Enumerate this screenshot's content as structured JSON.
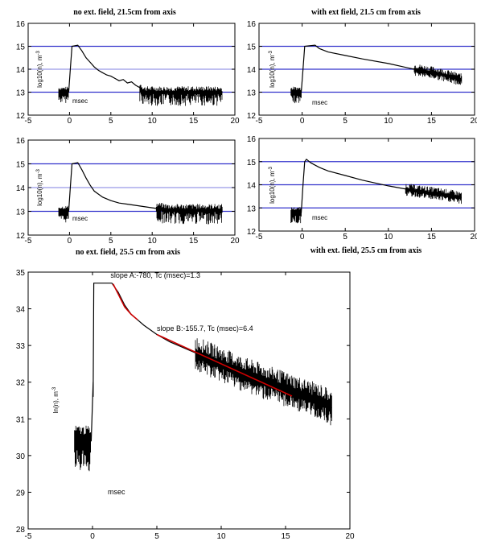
{
  "colors": {
    "data": "#000000",
    "fit": "#cc0000",
    "ref_dark": "#3333cc",
    "ref_light": "#9999e6"
  },
  "chart_data": [
    {
      "type": "line",
      "title": "no ext. field, 21.5cm from axis",
      "ylabel": "log10(n), m",
      "ylabel_sup": "-3",
      "xlabel": "msec",
      "xlim": [
        -5,
        20
      ],
      "ylim": [
        12,
        16
      ],
      "xticks": [
        "-5",
        "0",
        "5",
        "10",
        "15",
        "20"
      ],
      "yticks": [
        "12",
        "13",
        "14",
        "15",
        "16"
      ],
      "hlines": [
        13,
        14,
        15
      ],
      "series": [
        {
          "x": [
            -1.3,
            -0.1,
            0.1,
            0.3,
            1,
            1.5,
            2,
            2.5,
            3,
            3.5,
            4,
            4.5,
            5,
            5.5,
            6,
            6.5,
            7,
            7.5,
            8,
            8.5,
            9,
            10,
            12,
            14,
            16,
            18.5
          ],
          "y": [
            13.0,
            13.0,
            14.0,
            15.0,
            15.05,
            14.8,
            14.5,
            14.3,
            14.1,
            13.95,
            13.85,
            13.75,
            13.7,
            13.6,
            13.5,
            13.55,
            13.4,
            13.45,
            13.3,
            13.2,
            13.0,
            13.0,
            13.0,
            13.0,
            13.0,
            13.0
          ],
          "noise": [
            -1.3,
            -0.1,
            8.5,
            18.5
          ]
        }
      ]
    },
    {
      "type": "line",
      "title": "with ext field, 21.5 cm from axis",
      "ylabel": "log10(n), m",
      "ylabel_sup": "-3",
      "xlabel": "msec",
      "xlim": [
        -5,
        20
      ],
      "ylim": [
        12,
        16
      ],
      "xticks": [
        "-5",
        "0",
        "5",
        "10",
        "15",
        "20"
      ],
      "yticks": [
        "12",
        "13",
        "14",
        "15",
        "16"
      ],
      "hlines": [
        13,
        14,
        15
      ],
      "series": [
        {
          "x": [
            -1.3,
            -0.1,
            0.1,
            0.3,
            1.5,
            2,
            3,
            5,
            7,
            10,
            13,
            16,
            18.5
          ],
          "y": [
            13.0,
            13.0,
            14.0,
            15.0,
            15.05,
            14.9,
            14.75,
            14.6,
            14.45,
            14.25,
            14.0,
            13.8,
            13.55
          ],
          "noise": [
            -1.3,
            -0.1,
            13,
            18.5
          ]
        }
      ]
    },
    {
      "type": "line",
      "title": "no ext. field, 25.5 cm from axis",
      "ylabel": "log10(n), m",
      "ylabel_sup": "-3",
      "xlabel": "msec",
      "xlim": [
        -5,
        20
      ],
      "ylim": [
        12,
        16
      ],
      "xticks": [
        "-5",
        "0",
        "5",
        "10",
        "15",
        "20"
      ],
      "yticks": [
        "12",
        "13",
        "14",
        "15",
        "16"
      ],
      "hlines": [
        13,
        14,
        15
      ],
      "series": [
        {
          "x": [
            -1.3,
            -0.1,
            0.1,
            0.3,
            1,
            1.5,
            2,
            2.5,
            3,
            4,
            5,
            6,
            7,
            9,
            10,
            11,
            12,
            14,
            16,
            18.5
          ],
          "y": [
            13.0,
            13.0,
            14.0,
            15.0,
            15.05,
            14.75,
            14.4,
            14.1,
            13.85,
            13.6,
            13.45,
            13.35,
            13.3,
            13.2,
            13.15,
            13.1,
            13.05,
            13.05,
            13.05,
            13.05
          ],
          "noise": [
            -1.3,
            -0.1,
            10.5,
            18.5
          ]
        }
      ]
    },
    {
      "type": "line",
      "title": "with ext. field, 25.5 cm from axis",
      "ylabel": "log10(n), m",
      "ylabel_sup": "-3",
      "xlabel": "msec",
      "xlim": [
        -5,
        20
      ],
      "ylim": [
        12,
        16
      ],
      "xticks": [
        "-5",
        "0",
        "5",
        "10",
        "15",
        "20"
      ],
      "yticks": [
        "12",
        "13",
        "14",
        "15",
        "16"
      ],
      "hlines": [
        13,
        14,
        15
      ],
      "series": [
        {
          "x": [
            -1.3,
            -0.1,
            0.1,
            0.3,
            0.5,
            1,
            2,
            3,
            5,
            7,
            10,
            13,
            16,
            18.5
          ],
          "y": [
            12.8,
            12.8,
            14.0,
            15.0,
            15.1,
            14.95,
            14.75,
            14.6,
            14.4,
            14.2,
            13.95,
            13.75,
            13.6,
            13.45
          ],
          "noise": [
            -1.3,
            -0.1,
            12,
            18.5
          ]
        }
      ]
    },
    {
      "type": "line",
      "ylabel": "ln(n), m",
      "ylabel_sup": "-3",
      "xlabel": "msec",
      "xlim": [
        -5,
        20
      ],
      "ylim": [
        28,
        35
      ],
      "xticks": [
        "-5",
        "0",
        "5",
        "10",
        "15",
        "20"
      ],
      "yticks": [
        "28",
        "29",
        "30",
        "31",
        "32",
        "33",
        "34",
        "35"
      ],
      "annotations": [
        {
          "text": "slope A:-780, Tc (msec)=1.3",
          "x": 1.4,
          "y": 34.85
        },
        {
          "text": "slope B:-155.7, Tc (msec)=6.4",
          "x": 5.0,
          "y": 33.4
        }
      ],
      "series": [
        {
          "x": [
            -1.4,
            -0.1,
            0.05,
            0.05,
            0.1,
            0.1,
            1.5,
            2,
            2.5,
            3,
            4,
            5,
            6,
            8,
            10,
            12,
            14,
            16,
            18,
            18.6
          ],
          "y": [
            30.4,
            30.4,
            32.0,
            31.6,
            34.7,
            34.7,
            34.7,
            34.45,
            34.1,
            33.85,
            33.55,
            33.3,
            33.1,
            32.8,
            32.5,
            32.2,
            31.95,
            31.7,
            31.45,
            31.3
          ],
          "noise": [
            -1.4,
            -0.1,
            8,
            18.6
          ]
        }
      ],
      "fits": [
        {
          "x": [
            1.6,
            2,
            2.5,
            3,
            3.5
          ],
          "y": [
            34.68,
            34.4,
            34.05,
            33.85,
            33.7
          ]
        },
        {
          "x": [
            5,
            15.5
          ],
          "y": [
            33.3,
            31.62
          ]
        }
      ]
    }
  ]
}
